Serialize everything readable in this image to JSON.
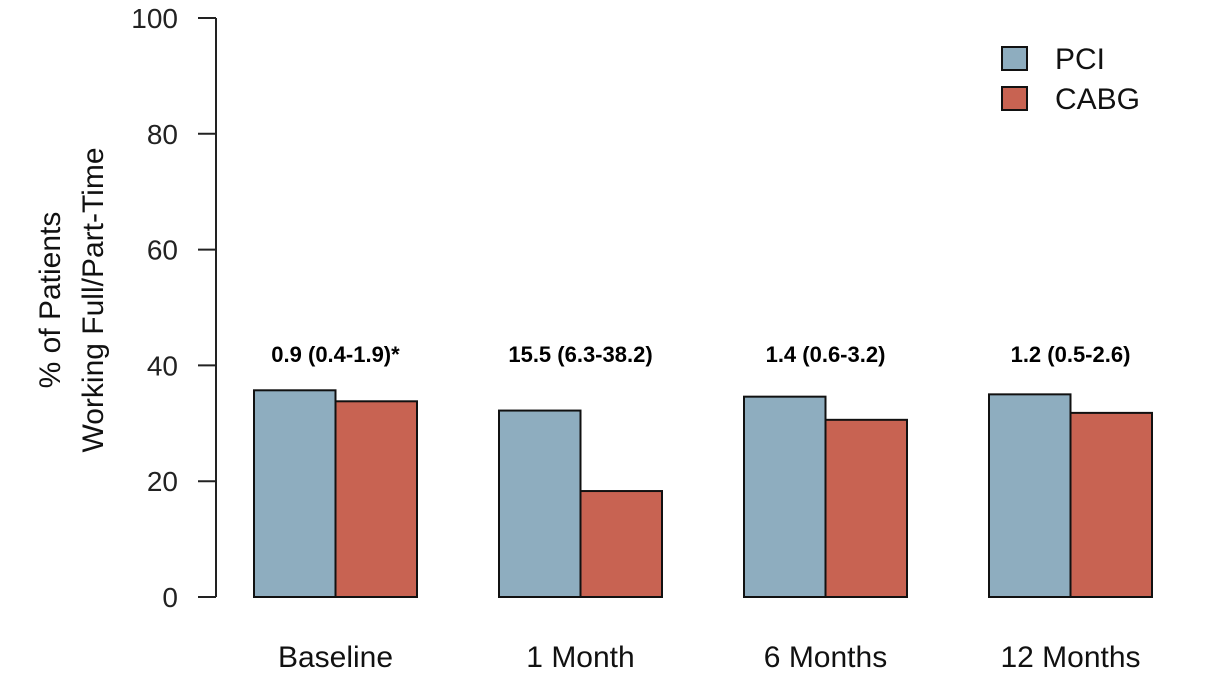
{
  "chart_data": {
    "type": "bar",
    "categories": [
      "Baseline",
      "1 Month",
      "6 Months",
      "12 Months"
    ],
    "series": [
      {
        "name": "PCI",
        "color": "#8eadbf",
        "values": [
          35.7,
          32.2,
          34.6,
          35.0
        ]
      },
      {
        "name": "CABG",
        "color": "#c86352",
        "values": [
          33.8,
          18.3,
          30.6,
          31.8
        ]
      }
    ],
    "annotations": [
      "0.9 (0.4-1.9)*",
      "15.5 (6.3-38.2)",
      "1.4 (0.6-3.2)",
      "1.2 (0.5-2.6)"
    ],
    "ylabel_lines": [
      "% of Patients",
      "Working Full/Part-Time"
    ],
    "yticks": [
      "0",
      "20",
      "40",
      "60",
      "80",
      "100"
    ],
    "ylim": [
      0,
      100
    ],
    "legend_position": "top-right",
    "title": "",
    "xlabel": ""
  }
}
